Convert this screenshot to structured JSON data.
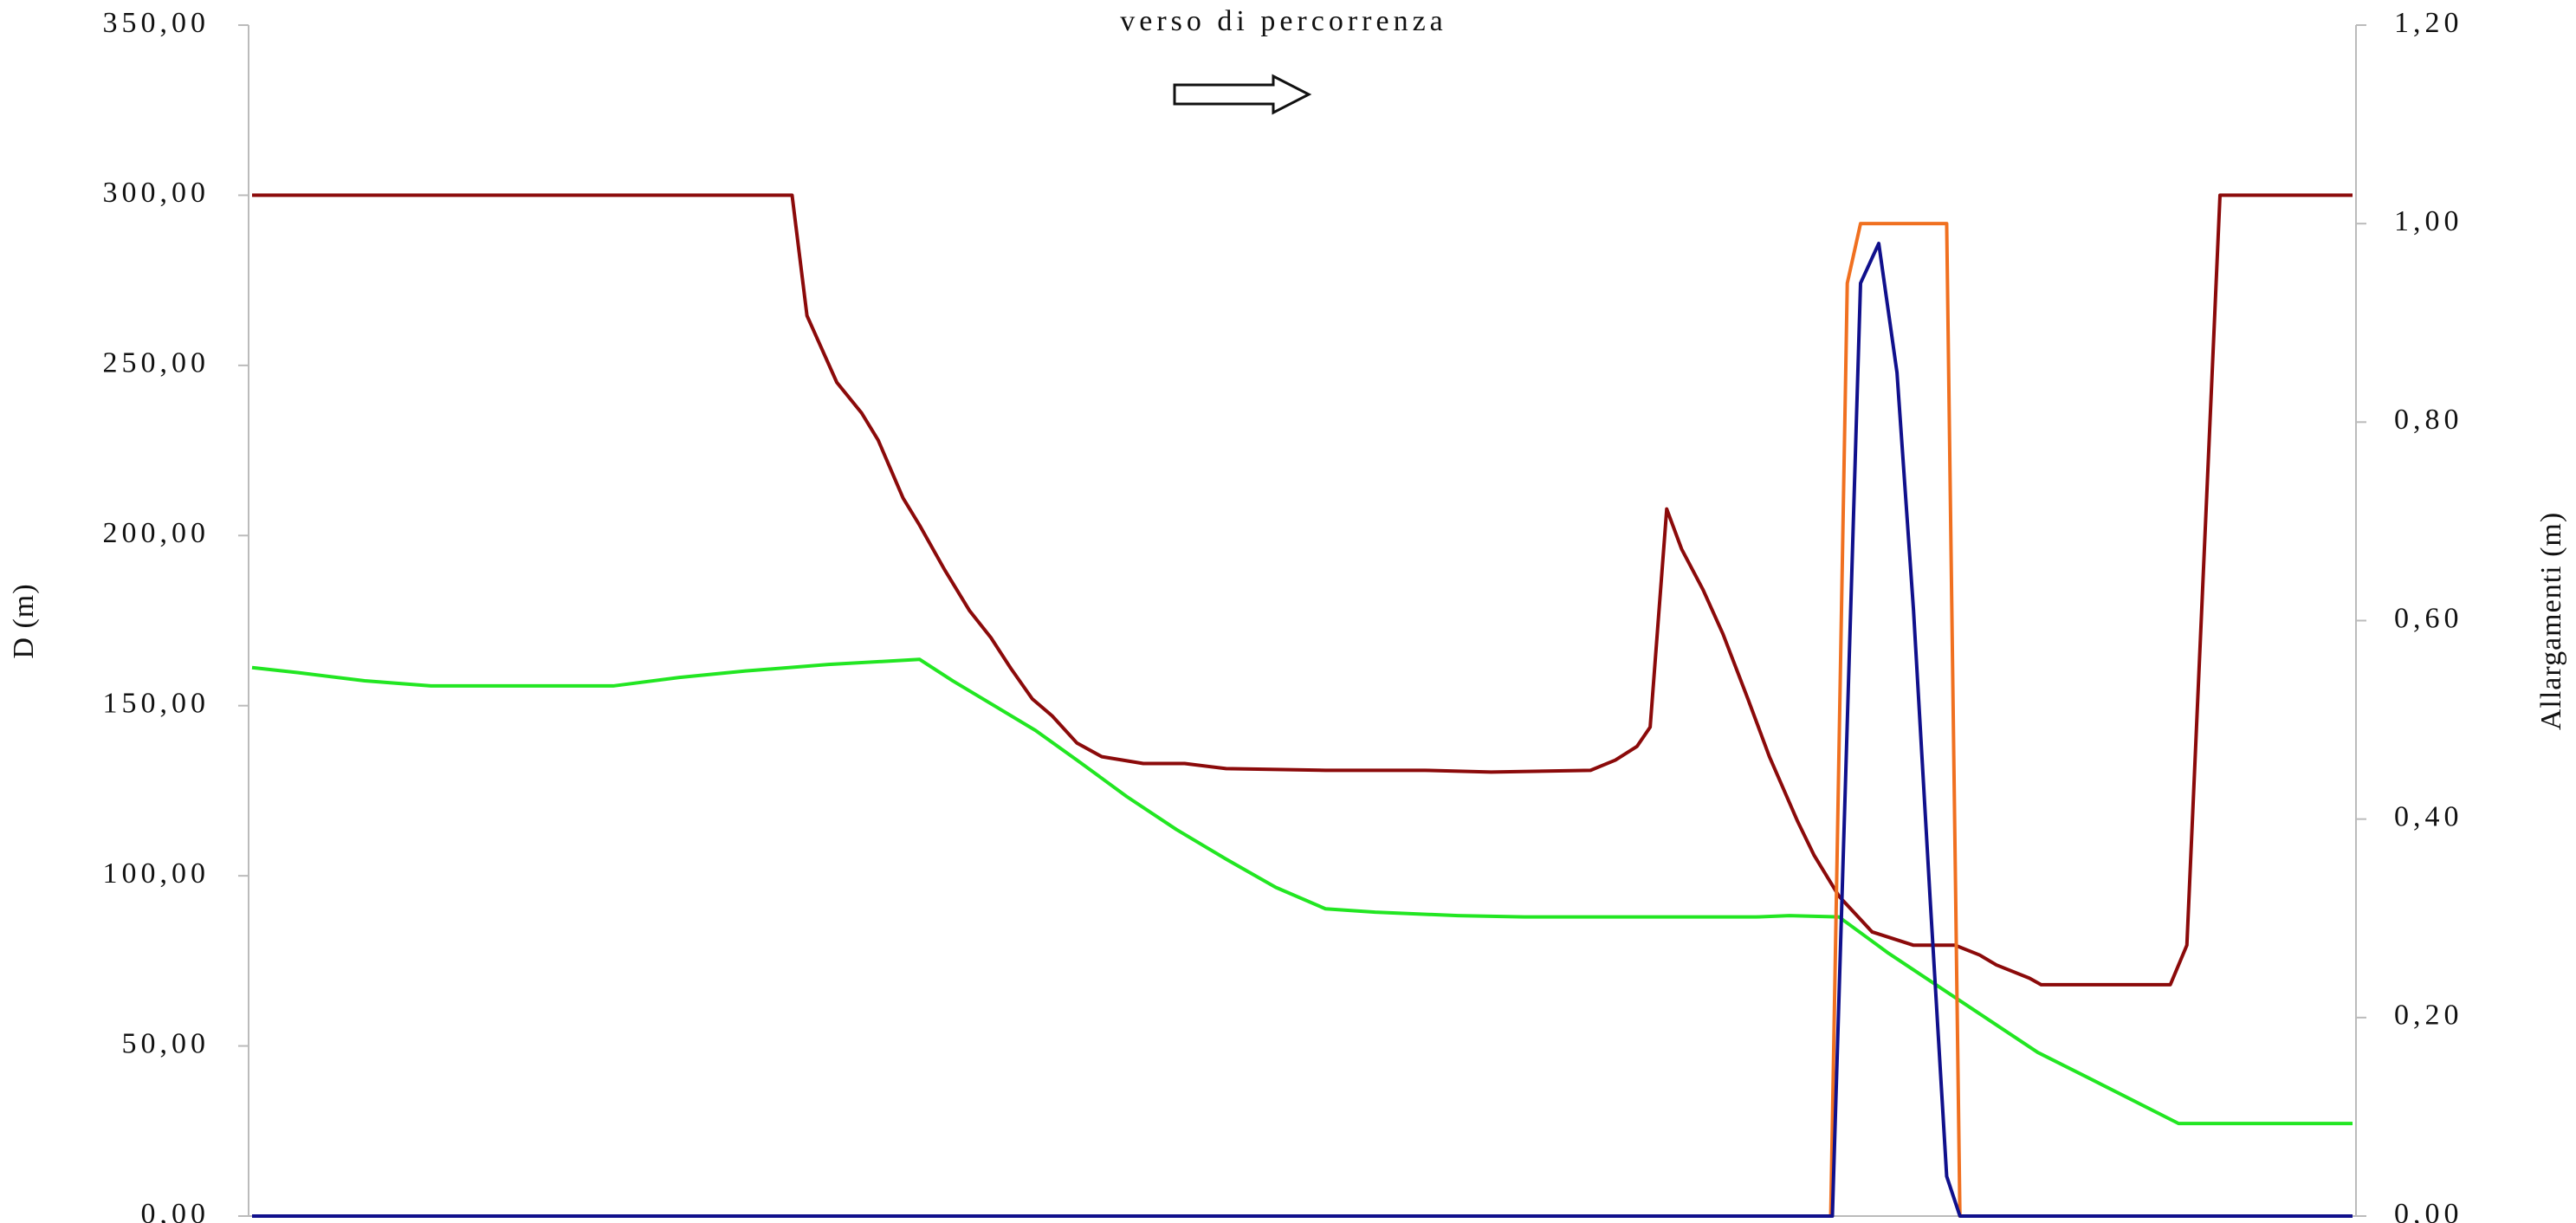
{
  "chart_data": {
    "type": "line",
    "title": "verso di percorrenza",
    "ylabel": "D (m)",
    "y2label": "Allargamenti (m)",
    "xlim": [
      0,
      1268
    ],
    "ylim": [
      0,
      350
    ],
    "yticks": [
      {
        "value": 0,
        "label": "0,00"
      },
      {
        "value": 50,
        "label": "50,00"
      },
      {
        "value": 100,
        "label": "100,00"
      },
      {
        "value": 150,
        "label": "150,00"
      },
      {
        "value": 200,
        "label": "200,00"
      },
      {
        "value": 250,
        "label": "250,00"
      },
      {
        "value": 300,
        "label": "300,00"
      },
      {
        "value": 350,
        "label": "350,00"
      }
    ],
    "y2lim": [
      0,
      1.2
    ],
    "y2ticks": [
      {
        "value": 0,
        "label": "0,00"
      },
      {
        "value": 0.2,
        "label": "0,20"
      },
      {
        "value": 0.4,
        "label": "0,40"
      },
      {
        "value": 0.6,
        "label": "0,60"
      },
      {
        "value": 0.8,
        "label": "0,80"
      },
      {
        "value": 1.0,
        "label": "1,00"
      },
      {
        "value": 1.2,
        "label": "1,20"
      }
    ],
    "series": [
      {
        "color": "#8b0a0a",
        "x": [
          0,
          326,
          335,
          353,
          368,
          378,
          393,
          403,
          418,
          433,
          446,
          458,
          471,
          483,
          498,
          513,
          538,
          563,
          588,
          648,
          678,
          708,
          748,
          808,
          823,
          836,
          844,
          854,
          863,
          876,
          888,
          903,
          916,
          933,
          943,
          958,
          978,
          1003,
          1028,
          1043,
          1053,
          1073,
          1080,
          1158,
          1168,
          1188,
          1268
        ],
        "values": [
          300,
          300,
          264.6,
          245,
          236,
          228,
          211,
          203,
          190,
          178,
          170,
          161,
          152,
          147,
          139,
          135,
          133,
          133,
          131.5,
          131,
          131,
          131,
          130.5,
          131,
          134,
          138,
          143.7,
          207.8,
          196,
          184,
          171,
          152,
          135,
          116,
          106,
          94,
          83.5,
          79.6,
          79.6,
          76.7,
          73.8,
          69.9,
          68,
          68,
          79.6,
          300,
          300
        ]
      },
      {
        "color": "#22e622",
        "x": [
          0,
          28,
          68,
          108,
          218,
          258,
          298,
          348,
          403,
          423,
          448,
          473,
          498,
          528,
          558,
          588,
          618,
          648,
          678,
          728,
          768,
          908,
          928,
          958,
          988,
          1018,
          1048,
          1078,
          1118,
          1163,
          1268
        ],
        "values": [
          161.2,
          159.7,
          157.3,
          155.8,
          155.8,
          158.3,
          160.2,
          162.1,
          163.6,
          157.3,
          150,
          142.7,
          134,
          123.3,
          113.6,
          104.9,
          96.6,
          90.3,
          89.3,
          88.3,
          87.9,
          87.9,
          88.3,
          87.9,
          77.2,
          67.5,
          57.8,
          48.1,
          38.3,
          27.2,
          27.2
        ]
      },
      {
        "color": "#f07020",
        "axis": "y2",
        "x": [
          0,
          953,
          963,
          971,
          1023,
          1031,
          1268
        ],
        "values": [
          0,
          0,
          0.94,
          1.0,
          1.0,
          0,
          0
        ]
      },
      {
        "color": "#10108c",
        "axis": "y2",
        "x": [
          0,
          954,
          971,
          982,
          993,
          1003,
          1013,
          1023,
          1031,
          1268
        ],
        "values": [
          0,
          0,
          0.94,
          0.98,
          0.85,
          0.61,
          0.32,
          0.04,
          0,
          0
        ]
      }
    ]
  }
}
